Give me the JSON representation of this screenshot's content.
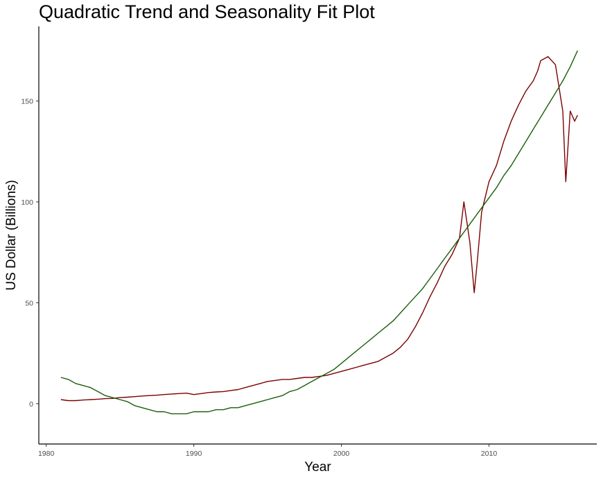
{
  "chart_data": {
    "type": "line",
    "title": "Quadratic Trend and Seasonality Fit Plot",
    "xlabel": "Year",
    "ylabel": "US Dollar (Billions)",
    "xlim": [
      1979.9,
      1981.0
    ],
    "ylim": [
      -20,
      187
    ],
    "x_ticks": [
      1980,
      1990,
      2000,
      2010
    ],
    "x_tick_labels": [
      "1980",
      "1990",
      "2000",
      "2010"
    ],
    "y_ticks": [
      0,
      50,
      100,
      150
    ],
    "y_tick_labels": [
      "0",
      "50",
      "100",
      "150"
    ],
    "grid": false,
    "legend": "none",
    "series_style": [
      {
        "color": "#7a0000"
      },
      {
        "color": "#1a5c0a"
      }
    ],
    "series": [
      {
        "x": [
          1981.0,
          1981.5,
          1982.0,
          1982.5,
          1983.0,
          1983.5,
          1984.0,
          1984.5,
          1985.0,
          1985.5,
          1986.0,
          1986.5,
          1987.0,
          1987.5,
          1988.0,
          1988.5,
          1989.0,
          1989.5,
          1990.0,
          1990.5,
          1991.0,
          1991.5,
          1992.0,
          1992.5,
          1993.0,
          1993.5,
          1994.0,
          1994.5,
          1995.0,
          1995.5,
          1996.0,
          1996.5,
          1997.0,
          1997.5,
          1998.0,
          1998.5,
          1999.0,
          1999.5,
          2000.0,
          2000.5,
          2001.0,
          2001.5,
          2002.0,
          2002.5,
          2003.0,
          2003.5,
          2004.0,
          2004.5,
          2005.0,
          2005.5,
          2006.0,
          2006.5,
          2007.0,
          2007.5,
          2008.0,
          2008.3,
          2008.5,
          2008.7,
          2009.0,
          2009.2,
          2009.5,
          2010.0,
          2010.5,
          2011.0,
          2011.5,
          2012.0,
          2012.5,
          2013.0,
          2013.3,
          2013.5,
          2014.0,
          2014.5,
          2015.0,
          2015.2,
          2015.5,
          2015.8,
          2016.0
        ],
        "values": [
          2,
          1.5,
          1.5,
          1.8,
          2,
          2.2,
          2.5,
          2.6,
          3,
          3.2,
          3.5,
          3.8,
          4,
          4.2,
          4.5,
          4.8,
          5,
          5.2,
          4.5,
          5,
          5.5,
          5.8,
          6,
          6.5,
          7,
          8,
          9,
          10,
          11,
          11.5,
          12,
          12,
          12.5,
          13,
          13,
          13.5,
          14,
          15,
          16,
          17,
          18,
          19,
          20,
          21,
          23,
          25,
          28,
          32,
          38,
          45,
          53,
          60,
          68,
          74,
          82,
          100,
          90,
          80,
          55,
          70,
          95,
          110,
          118,
          130,
          140,
          148,
          155,
          160,
          165,
          170,
          172,
          168,
          145,
          110,
          145,
          140,
          143
        ]
      },
      {
        "x": [
          1981.0,
          1981.5,
          1982.0,
          1982.5,
          1983.0,
          1983.5,
          1984.0,
          1984.5,
          1985.0,
          1985.5,
          1986.0,
          1986.5,
          1987.0,
          1987.5,
          1988.0,
          1988.5,
          1989.0,
          1989.5,
          1990.0,
          1990.5,
          1991.0,
          1991.5,
          1992.0,
          1992.5,
          1993.0,
          1993.5,
          1994.0,
          1994.5,
          1995.0,
          1995.5,
          1996.0,
          1996.5,
          1997.0,
          1997.5,
          1998.0,
          1998.5,
          1999.0,
          1999.5,
          2000.0,
          2000.5,
          2001.0,
          2001.5,
          2002.0,
          2002.5,
          2003.0,
          2003.5,
          2004.0,
          2004.5,
          2005.0,
          2005.5,
          2006.0,
          2006.5,
          2007.0,
          2007.5,
          2008.0,
          2008.5,
          2009.0,
          2009.5,
          2010.0,
          2010.5,
          2011.0,
          2011.5,
          2012.0,
          2012.5,
          2013.0,
          2013.5,
          2014.0,
          2014.5,
          2015.0,
          2015.5,
          2016.0
        ],
        "values": [
          13,
          12,
          10,
          9,
          8,
          6,
          4,
          3,
          2,
          1,
          -1,
          -2,
          -3,
          -4,
          -4,
          -5,
          -5,
          -5,
          -4,
          -4,
          -4,
          -3,
          -3,
          -2,
          -2,
          -1,
          0,
          1,
          2,
          3,
          4,
          6,
          7,
          9,
          11,
          13,
          15,
          17,
          20,
          23,
          26,
          29,
          32,
          35,
          38,
          41,
          45,
          49,
          53,
          57,
          62,
          67,
          72,
          77,
          82,
          87,
          92,
          97,
          102,
          107,
          113,
          118,
          124,
          130,
          136,
          142,
          148,
          154,
          160,
          167,
          175
        ]
      }
    ]
  }
}
